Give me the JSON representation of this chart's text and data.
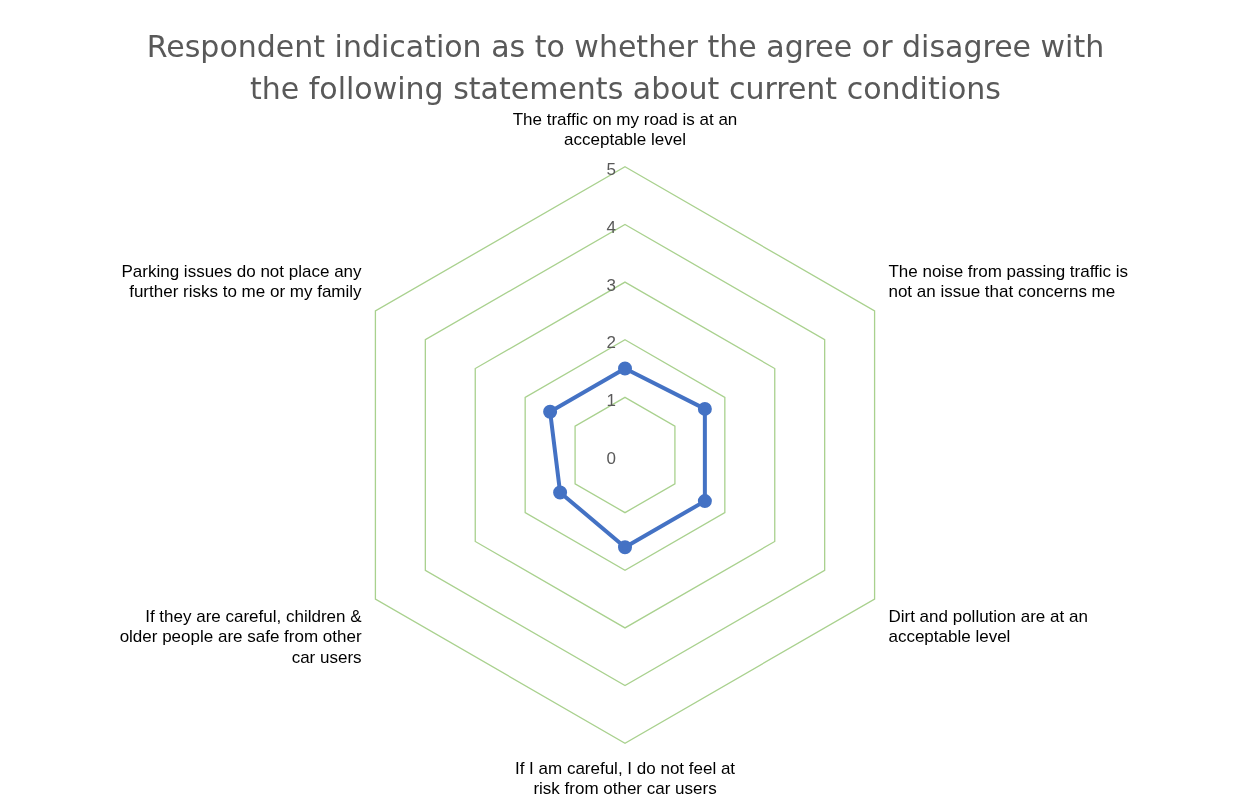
{
  "chart_data": {
    "type": "radar",
    "title": "Respondent indication as to whether the agree or disagree with the following statements about current conditions",
    "categories": [
      "The traffic on my road is at an acceptable level",
      "The noise from passing traffic is not an issue that concerns me",
      "Dirt and pollution are at an acceptable level",
      "If I am careful, I do not feel at risk from other car users",
      "If they are careful, children & older people are safe from other car users",
      "Parking issues do not place any further risks to me or my family"
    ],
    "series": [
      {
        "color": "#4472c4",
        "values": [
          1.5,
          1.6,
          1.6,
          1.6,
          1.3,
          1.5
        ]
      }
    ],
    "ylim": [
      0,
      5
    ],
    "yticks": [
      0,
      1,
      2,
      3,
      4,
      5
    ],
    "grid": true,
    "legend": false,
    "marker": "circle"
  }
}
